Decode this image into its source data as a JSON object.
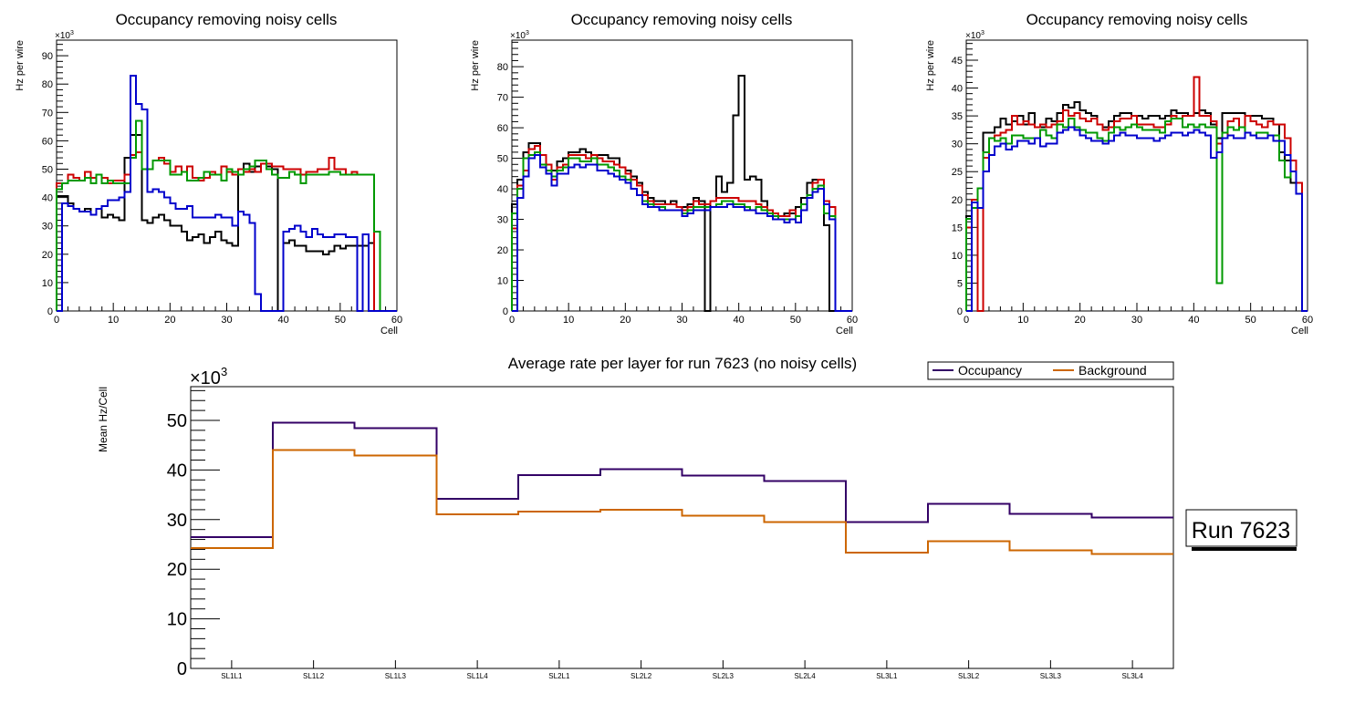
{
  "chart_data": [
    {
      "type": "line",
      "subtype": "histogram-step",
      "title": "Occupancy removing noisy cells",
      "xlabel": "Cell",
      "ylabel": "Hz per wire",
      "y_multiplier_label": "×10",
      "y_multiplier_exp": "3",
      "xlim": [
        0,
        60
      ],
      "ylim": [
        0,
        95.5
      ],
      "xticks": [
        0,
        10,
        20,
        30,
        40,
        50,
        60
      ],
      "yticks": [
        0,
        10,
        20,
        30,
        40,
        50,
        60,
        70,
        80,
        90
      ],
      "grid": false,
      "series": [
        {
          "name": "black",
          "color": "#000000",
          "values": [
            40.5,
            40.5,
            38,
            36,
            35,
            36,
            34,
            36,
            33,
            34,
            33,
            32,
            54,
            62,
            62,
            32,
            31,
            33,
            34,
            32,
            30,
            30,
            28,
            25,
            26,
            27,
            24,
            26,
            28,
            25,
            24,
            23,
            50,
            52,
            49,
            51,
            52,
            51,
            50,
            0,
            24,
            25,
            23,
            23,
            21,
            21,
            21,
            20,
            21,
            23,
            22,
            23,
            23,
            23,
            23,
            24,
            0,
            0,
            0,
            0
          ]
        },
        {
          "name": "red",
          "color": "#cc0000",
          "values": [
            45,
            45,
            48,
            47,
            46,
            49,
            47,
            48,
            47,
            45,
            46,
            46,
            48,
            55,
            56,
            50,
            50,
            53,
            54,
            52,
            49,
            51,
            49,
            51,
            47,
            46,
            47,
            49,
            48,
            51,
            49,
            48,
            50,
            49,
            50,
            49,
            52,
            52,
            51,
            51,
            50,
            50,
            50,
            48,
            49,
            49,
            50,
            50,
            54,
            50,
            50,
            48,
            49,
            48,
            48,
            48,
            0,
            0,
            0,
            0
          ]
        },
        {
          "name": "green",
          "color": "#009900",
          "values": [
            43,
            45,
            46,
            46,
            46,
            47,
            45,
            48,
            45,
            46,
            45,
            45,
            45,
            54,
            67,
            50,
            50,
            53,
            53,
            53,
            48,
            48,
            49,
            46,
            46,
            47,
            49,
            48,
            48,
            46,
            50,
            49,
            48,
            50,
            51,
            53,
            53,
            50,
            48,
            47,
            47,
            49,
            48,
            45,
            48,
            48,
            48,
            48,
            49,
            49,
            48,
            48,
            48,
            48,
            48,
            48,
            28,
            0,
            0,
            0
          ]
        },
        {
          "name": "blue",
          "color": "#0000cc",
          "values": [
            0,
            38,
            37,
            36,
            35,
            35,
            34,
            36,
            37,
            39,
            39,
            40,
            42,
            83,
            73,
            71,
            42,
            43,
            42,
            40,
            38,
            36,
            36,
            37,
            33,
            33,
            33,
            33,
            34,
            33,
            33,
            30,
            35,
            34,
            31,
            6,
            0,
            0,
            0,
            0,
            28,
            29,
            30,
            28,
            26,
            29,
            27,
            26,
            26,
            27,
            27,
            26,
            26,
            0,
            27,
            0,
            0,
            0,
            0,
            0
          ]
        }
      ]
    },
    {
      "type": "line",
      "subtype": "histogram-step",
      "title": "Occupancy removing noisy cells",
      "xlabel": "Cell",
      "ylabel": "Hz per wire",
      "y_multiplier_label": "×10",
      "y_multiplier_exp": "3",
      "xlim": [
        0,
        60
      ],
      "ylim": [
        0,
        88.7
      ],
      "xticks": [
        0,
        10,
        20,
        30,
        40,
        50,
        60
      ],
      "yticks": [
        0,
        10,
        20,
        30,
        40,
        50,
        60,
        70,
        80
      ],
      "grid": false,
      "series": [
        {
          "name": "black",
          "color": "#000000",
          "values": [
            35,
            43,
            52,
            55,
            55,
            51,
            48,
            46,
            49,
            50,
            52,
            52,
            53,
            52,
            51,
            51,
            51,
            50,
            50,
            47,
            46,
            44,
            42,
            39,
            37,
            36,
            36,
            35,
            36,
            34,
            34,
            35,
            37,
            36,
            0,
            36,
            44,
            39,
            42,
            64,
            77,
            43,
            44,
            43,
            36,
            33,
            32,
            31,
            32,
            32,
            34,
            37,
            42,
            43,
            43,
            28,
            0,
            0,
            0,
            0
          ]
        },
        {
          "name": "red",
          "color": "#cc0000",
          "values": [
            27,
            41,
            46,
            53,
            54,
            51,
            48,
            43,
            47,
            48,
            51,
            51,
            51,
            50,
            51,
            50,
            49,
            49,
            48,
            47,
            45,
            43,
            41,
            38,
            36,
            35,
            35,
            35,
            35,
            34,
            33,
            34,
            36,
            35,
            35,
            36,
            37,
            37,
            37,
            37,
            36,
            36,
            36,
            35,
            34,
            33,
            32,
            31,
            31,
            33,
            31,
            35,
            38,
            42,
            43,
            36,
            34,
            0,
            0,
            0
          ]
        },
        {
          "name": "green",
          "color": "#009900",
          "values": [
            32,
            40,
            50,
            51,
            52,
            48,
            46,
            44,
            46,
            47,
            50,
            50,
            49,
            49,
            50,
            48,
            48,
            47,
            46,
            44,
            43,
            40,
            38,
            36,
            35,
            34,
            34,
            33,
            33,
            33,
            32,
            33,
            34,
            34,
            34,
            34,
            35,
            36,
            36,
            35,
            35,
            34,
            33,
            34,
            33,
            32,
            31,
            30,
            30,
            30,
            31,
            35,
            38,
            40,
            41,
            32,
            31,
            0,
            0,
            0
          ]
        },
        {
          "name": "blue",
          "color": "#0000cc",
          "values": [
            0,
            37,
            44,
            50,
            51,
            47,
            45,
            41,
            45,
            45,
            47,
            48,
            47,
            48,
            48,
            46,
            46,
            45,
            44,
            43,
            42,
            40,
            38,
            35,
            34,
            34,
            33,
            33,
            33,
            33,
            31,
            32,
            33,
            33,
            33,
            34,
            34,
            34,
            35,
            34,
            34,
            33,
            33,
            32,
            32,
            31,
            30,
            30,
            29,
            30,
            29,
            33,
            37,
            39,
            40,
            35,
            30,
            0,
            0,
            0
          ]
        }
      ]
    },
    {
      "type": "line",
      "subtype": "histogram-step",
      "title": "Occupancy removing noisy cells",
      "xlabel": "Cell",
      "ylabel": "Hz per wire",
      "y_multiplier_label": "×10",
      "y_multiplier_exp": "3",
      "xlim": [
        0,
        60
      ],
      "ylim": [
        0,
        48.6
      ],
      "xticks": [
        0,
        10,
        20,
        30,
        40,
        50,
        60
      ],
      "yticks": [
        0,
        5,
        10,
        15,
        20,
        25,
        30,
        35,
        40,
        45
      ],
      "grid": false,
      "series": [
        {
          "name": "black",
          "color": "#000000",
          "values": [
            17,
            20,
            22,
            32,
            32,
            33,
            34.5,
            33.5,
            34,
            35,
            33.5,
            35.5,
            33,
            33,
            34.5,
            34,
            35.5,
            37,
            36.5,
            37.5,
            36,
            35.5,
            35,
            33.5,
            33,
            34,
            35,
            35.5,
            35.5,
            35,
            35,
            34.5,
            35,
            35,
            34.5,
            35,
            36,
            35.5,
            35.5,
            35,
            35.5,
            36,
            35.5,
            33.5,
            31,
            35.5,
            35.5,
            35.5,
            35.5,
            35,
            35,
            35,
            34.5,
            34.5,
            33.5,
            28.5,
            27,
            23,
            21,
            0
          ]
        },
        {
          "name": "red",
          "color": "#cc0000",
          "values": [
            15,
            20,
            0,
            27.5,
            31,
            31.5,
            32,
            32.5,
            35,
            33.5,
            34,
            33.5,
            33,
            33.5,
            33,
            33.5,
            34,
            36,
            35,
            35.5,
            34.5,
            34,
            34.5,
            33.5,
            32.5,
            33,
            34,
            34.5,
            34.5,
            35,
            33.5,
            33.5,
            33.5,
            33,
            33,
            33.5,
            35,
            34.5,
            35,
            35,
            42,
            35,
            35,
            34,
            30,
            31,
            34,
            34.5,
            33,
            35,
            34,
            33.5,
            33,
            34,
            33.5,
            33.5,
            31,
            27,
            23,
            0
          ]
        },
        {
          "name": "green",
          "color": "#009900",
          "values": [
            16.5,
            18.5,
            22,
            28.5,
            31,
            30.5,
            31,
            30,
            31.5,
            31.5,
            31,
            31,
            31,
            32.5,
            31.5,
            31,
            33.5,
            33,
            34.5,
            33,
            32.5,
            32,
            32,
            31,
            30.5,
            32,
            33,
            32.5,
            33,
            33.5,
            33,
            32.5,
            32.5,
            32.5,
            32,
            34,
            34.5,
            34.5,
            33,
            33.5,
            33,
            33.5,
            33,
            33,
            5,
            32,
            33,
            32.5,
            33,
            32,
            31.5,
            32,
            32,
            31.5,
            31.5,
            27,
            24,
            25,
            21,
            0
          ]
        },
        {
          "name": "blue",
          "color": "#0000cc",
          "values": [
            0,
            19.5,
            18.5,
            25,
            28,
            29.5,
            30,
            29,
            29.5,
            30.5,
            30.5,
            30,
            31,
            29.5,
            30,
            30,
            32,
            32.5,
            33,
            32.5,
            31.5,
            31,
            30.5,
            30.5,
            30,
            30.5,
            31.5,
            32,
            31.5,
            31.5,
            31,
            31,
            31,
            30.5,
            31,
            31.5,
            32,
            32,
            31.5,
            32,
            32.5,
            32,
            31.5,
            27.5,
            28.5,
            31,
            31.5,
            31,
            31,
            32,
            31.5,
            31,
            31,
            31.5,
            30.5,
            30.5,
            28,
            25,
            21,
            0
          ]
        }
      ]
    },
    {
      "type": "line",
      "subtype": "histogram-step",
      "title": "Average rate per layer for run 7623 (no noisy cells)",
      "xlabel": "",
      "ylabel": "Mean Hz/Cell",
      "y_multiplier_label": "×10",
      "y_multiplier_exp": "3",
      "categories": [
        "SL1L1",
        "SL1L2",
        "SL1L3",
        "SL1L4",
        "SL2L1",
        "SL2L2",
        "SL2L3",
        "SL2L4",
        "SL3L1",
        "SL3L2",
        "SL3L3",
        "SL3L4"
      ],
      "ylim": [
        0,
        56.8
      ],
      "yticks": [
        0,
        10,
        20,
        30,
        40,
        50
      ],
      "grid": false,
      "legend_position": "top-right",
      "series": [
        {
          "name": "Occupancy",
          "color": "#330066",
          "values": [
            26.5,
            49.5,
            48.4,
            34.2,
            39.0,
            40.2,
            38.9,
            37.8,
            29.5,
            33.2,
            31.2,
            30.4
          ]
        },
        {
          "name": "Background",
          "color": "#cc6600",
          "values": [
            24.3,
            44.0,
            42.9,
            31.1,
            31.6,
            32.0,
            30.8,
            29.5,
            23.3,
            25.6,
            23.8,
            23.1
          ]
        }
      ]
    }
  ],
  "annotation": {
    "label": "Run 7623"
  }
}
